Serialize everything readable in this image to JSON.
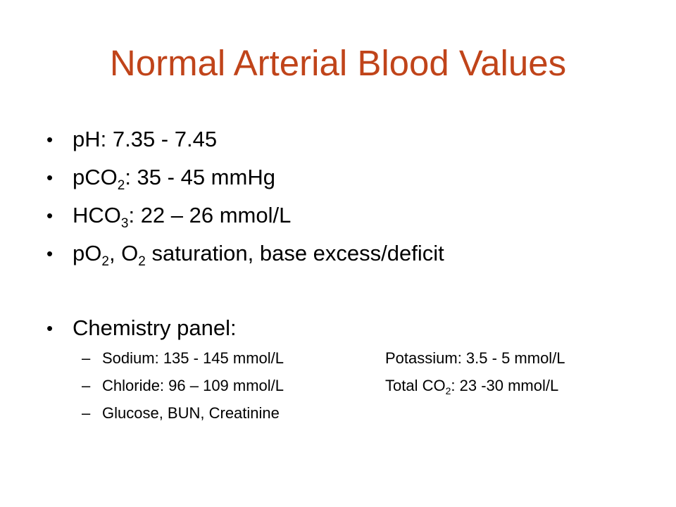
{
  "slide": {
    "title": "Normal Arterial Blood Values",
    "title_color": "#c0441a",
    "bullet_char": "•",
    "dash_char": "–",
    "bullets": {
      "ph": {
        "text": "pH: 7.35 - 7.45"
      },
      "pco2": {
        "pre": "pCO",
        "sub": "2",
        "post": ": 35 - 45 mmHg"
      },
      "hco3": {
        "pre": "HCO",
        "sub": "3",
        "post": ": 22 – 26 mmol/L"
      },
      "po2": {
        "pre": "pO",
        "sub": "2",
        "mid": ", O",
        "sub2": "2",
        "post": " saturation, base excess/deficit"
      },
      "chem": {
        "text": "Chemistry panel:"
      }
    },
    "chemistry": {
      "sodium": "Sodium: 135 - 145 mmol/L",
      "potassium": "Potassium: 3.5 - 5 mmol/L",
      "chloride": "Chloride: 96 – 109 mmol/L",
      "total_co2": {
        "pre": "Total CO",
        "sub": "2",
        "post": ": 23 -30 mmol/L"
      },
      "glucose": "Glucose, BUN, Creatinine"
    }
  }
}
